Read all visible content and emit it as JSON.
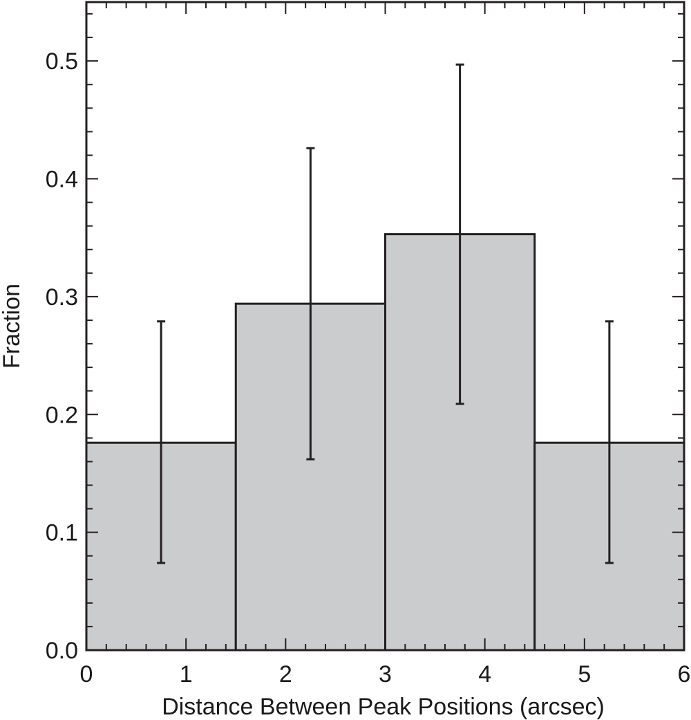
{
  "chart_data": {
    "type": "bar",
    "subtype": "histogram",
    "xlabel": "Distance Between Peak Positions (arcsec)",
    "ylabel": "Fraction",
    "xlim": [
      0,
      6
    ],
    "ylim": [
      0,
      0.55
    ],
    "x_ticks": [
      "0",
      "1",
      "2",
      "3",
      "4",
      "5",
      "6"
    ],
    "y_ticks": [
      "0.0",
      "0.1",
      "0.2",
      "0.3",
      "0.4",
      "0.5"
    ],
    "bins": [
      {
        "x_start": 0.0,
        "x_end": 1.5,
        "value": 0.176,
        "error_x": 0.75,
        "err_low": 0.074,
        "err_high": 0.279
      },
      {
        "x_start": 1.5,
        "x_end": 3.0,
        "value": 0.294,
        "error_x": 2.25,
        "err_low": 0.162,
        "err_high": 0.426
      },
      {
        "x_start": 3.0,
        "x_end": 4.5,
        "value": 0.353,
        "error_x": 3.75,
        "err_low": 0.209,
        "err_high": 0.497
      },
      {
        "x_start": 4.5,
        "x_end": 6.0,
        "value": 0.176,
        "error_x": 5.25,
        "err_low": 0.074,
        "err_high": 0.279
      }
    ],
    "bar_color": "#cbcccd",
    "line_color": "#231f20",
    "grid": false,
    "legend": "none"
  }
}
